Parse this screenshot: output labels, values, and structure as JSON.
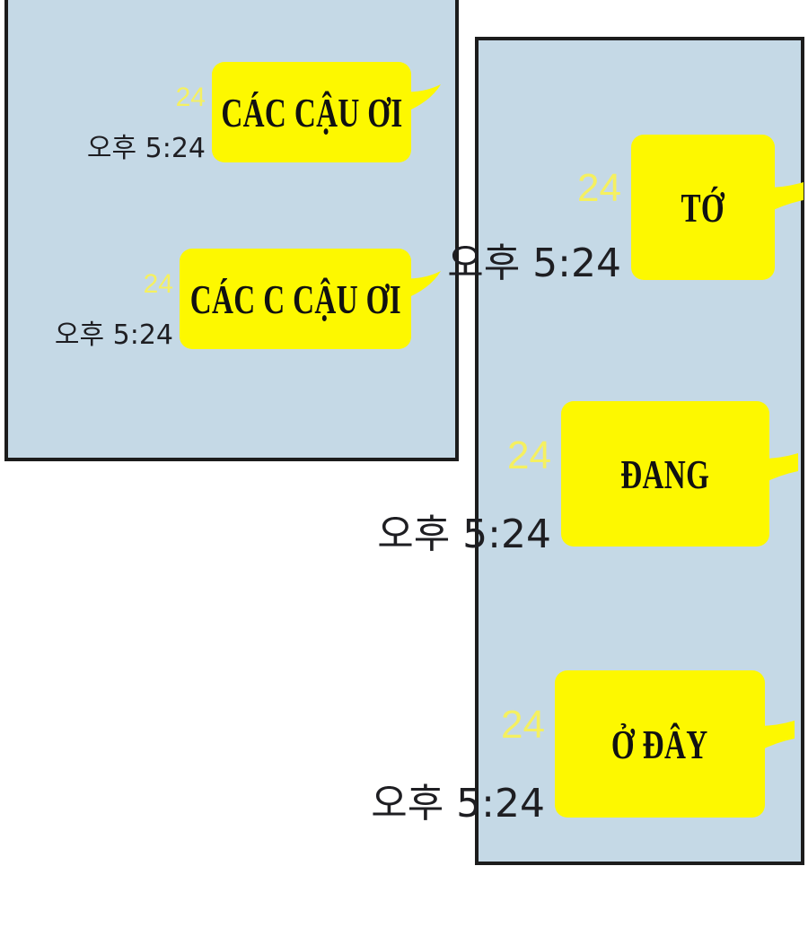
{
  "colors": {
    "panel_bg": "#c5d9e6",
    "bubble": "#fdf800",
    "read_count": "#f5f060",
    "border": "#1c1c1c"
  },
  "panel_left": {
    "messages": [
      {
        "text": "CÁC CẬU ƠI",
        "unread": "24",
        "time": "오후 5:24"
      },
      {
        "text": "CÁC C CẬU ƠI",
        "unread": "24",
        "time": "오후 5:24"
      }
    ]
  },
  "panel_right": {
    "messages": [
      {
        "text": "TỚ",
        "unread": "24",
        "time": "오후 5:24"
      },
      {
        "text": "ĐANG",
        "unread": "24",
        "time": "오후 5:24"
      },
      {
        "text": "Ở ĐÂY",
        "unread": "24",
        "time": "오후 5:24"
      }
    ]
  }
}
